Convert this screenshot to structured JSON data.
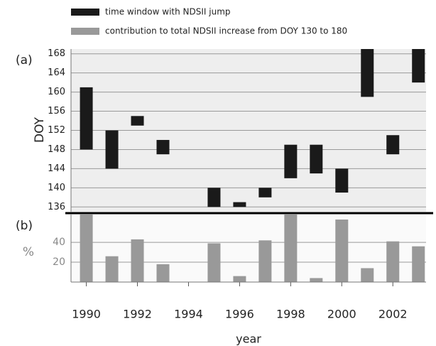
{
  "chart_data": [
    {
      "type": "range",
      "panel": "(a)",
      "y_label": "DOY",
      "x": [
        1990,
        1991,
        1992,
        1993,
        1994,
        1995,
        1996,
        1997,
        1998,
        1999,
        2000,
        2001,
        2002,
        2003
      ],
      "series": [
        {
          "name": "time window with NDSII jump",
          "color": "#1a1a1a",
          "low": [
            148,
            144,
            153,
            147,
            null,
            136,
            136,
            138,
            142,
            143,
            139,
            159,
            147,
            162
          ],
          "high": [
            161,
            152,
            155,
            150,
            null,
            140,
            137,
            140,
            149,
            149,
            144,
            169,
            151,
            169
          ]
        }
      ],
      "xlim": [
        1989.4,
        2003.3
      ],
      "ylim": [
        135,
        169
      ],
      "yticks": [
        136,
        140,
        144,
        148,
        152,
        156,
        160,
        164,
        168
      ],
      "grid": true
    },
    {
      "type": "bar",
      "panel": "(b)",
      "y_label": "%",
      "x_label": "year",
      "x": [
        1990,
        1991,
        1992,
        1993,
        1994,
        1995,
        1996,
        1997,
        1998,
        1999,
        2000,
        2001,
        2002,
        2003
      ],
      "series": [
        {
          "name": "contribution to total NDSII increase from DOY 130 to 180",
          "color": "#999999",
          "values": [
            70,
            26,
            43,
            18,
            null,
            39,
            6,
            42,
            70,
            4,
            63,
            14,
            41,
            36
          ]
        }
      ],
      "xlim": [
        1989.4,
        2003.3
      ],
      "xticks": [
        1990,
        1992,
        1994,
        1996,
        1998,
        2000,
        2002
      ],
      "ylim": [
        0,
        68
      ],
      "yticks": [
        20,
        40
      ],
      "grid": true
    }
  ]
}
